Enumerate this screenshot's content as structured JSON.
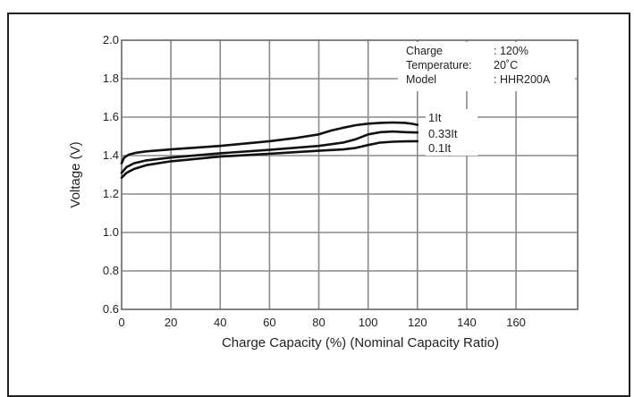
{
  "chart_data": {
    "type": "line",
    "title": "",
    "xlabel": "Charge Capacity (%) (Nominal Capacity Ratio)",
    "ylabel": "Voltage (V)",
    "xlim": [
      0,
      185
    ],
    "ylim": [
      0.6,
      2.0
    ],
    "xticks": [
      0,
      20,
      40,
      60,
      80,
      100,
      120,
      140,
      160
    ],
    "xtick_labels": [
      "0",
      "20",
      "40",
      "60",
      "80",
      "100",
      "120",
      "140",
      "160"
    ],
    "yticks": [
      0.6,
      0.8,
      1.0,
      1.2,
      1.4,
      1.6,
      1.8,
      2.0
    ],
    "ytick_labels": [
      "0.6",
      "0.8",
      "1.0",
      "1.2",
      "1.4",
      "1.6",
      "1.8",
      "2.0"
    ],
    "grid": true,
    "info_box": [
      {
        "label": "Charge",
        "value": ": 120%"
      },
      {
        "label": "Temperature:",
        "value": "20˚C"
      },
      {
        "label": "Model",
        "value": ": HHR200A"
      }
    ],
    "series": [
      {
        "name": "1It",
        "x": [
          0,
          1,
          3,
          6,
          10,
          20,
          40,
          60,
          70,
          80,
          85,
          90,
          95,
          100,
          105,
          110,
          115,
          118,
          120
        ],
        "y": [
          1.36,
          1.39,
          1.405,
          1.415,
          1.422,
          1.432,
          1.45,
          1.475,
          1.49,
          1.51,
          1.53,
          1.545,
          1.558,
          1.566,
          1.57,
          1.572,
          1.57,
          1.565,
          1.56
        ]
      },
      {
        "name": "0.33It",
        "x": [
          0,
          2,
          5,
          10,
          20,
          40,
          60,
          80,
          90,
          95,
          100,
          105,
          110,
          115,
          120
        ],
        "y": [
          1.31,
          1.34,
          1.36,
          1.375,
          1.39,
          1.412,
          1.43,
          1.45,
          1.468,
          1.485,
          1.51,
          1.522,
          1.525,
          1.522,
          1.52
        ]
      },
      {
        "name": "0.1It",
        "x": [
          0,
          2,
          5,
          10,
          20,
          40,
          60,
          80,
          90,
          95,
          100,
          105,
          110,
          115,
          120
        ],
        "y": [
          1.285,
          1.31,
          1.33,
          1.35,
          1.37,
          1.395,
          1.41,
          1.425,
          1.432,
          1.44,
          1.455,
          1.468,
          1.472,
          1.474,
          1.475
        ]
      }
    ]
  }
}
